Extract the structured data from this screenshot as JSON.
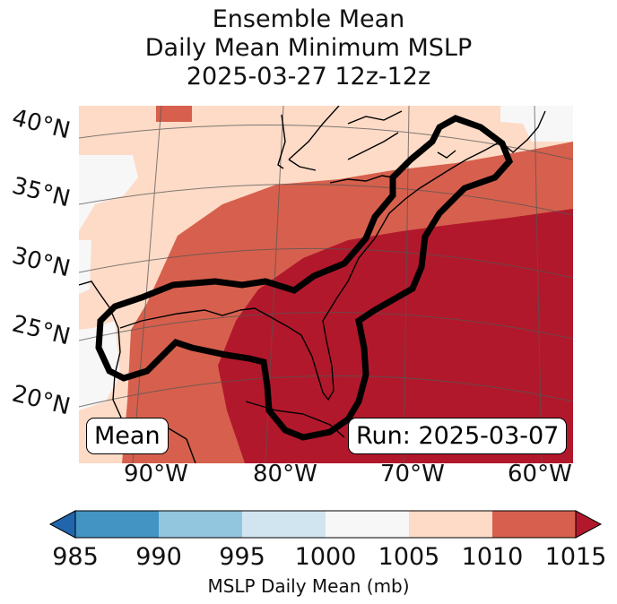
{
  "title": {
    "line1": "Ensemble Mean",
    "line2": "Daily Mean Minimum MSLP",
    "line3": "2025-03-27 12z-12z"
  },
  "map": {
    "lat_labels": [
      "40°N",
      "35°N",
      "30°N",
      "25°N",
      "20°N"
    ],
    "lon_labels": [
      "90°W",
      "80°W",
      "70°W",
      "60°W"
    ],
    "mean_label": "Mean",
    "run_label": "Run: 2025-03-07",
    "fill_colors": {
      "c1005_1010": "#fddbc7",
      "c1010_1015": "#d6604d",
      "c1015plus": "#b2182b",
      "c1000_1005": "#f7f7f7"
    }
  },
  "colorbar": {
    "ticks": [
      "985",
      "990",
      "995",
      "1000",
      "1005",
      "1010",
      "1015"
    ],
    "title": "MSLP Daily Mean (mb)",
    "colors": [
      "#2166ac",
      "#4393c3",
      "#92c5de",
      "#d1e5f0",
      "#f7f7f7",
      "#fddbc7",
      "#d6604d",
      "#b2182b"
    ]
  }
}
